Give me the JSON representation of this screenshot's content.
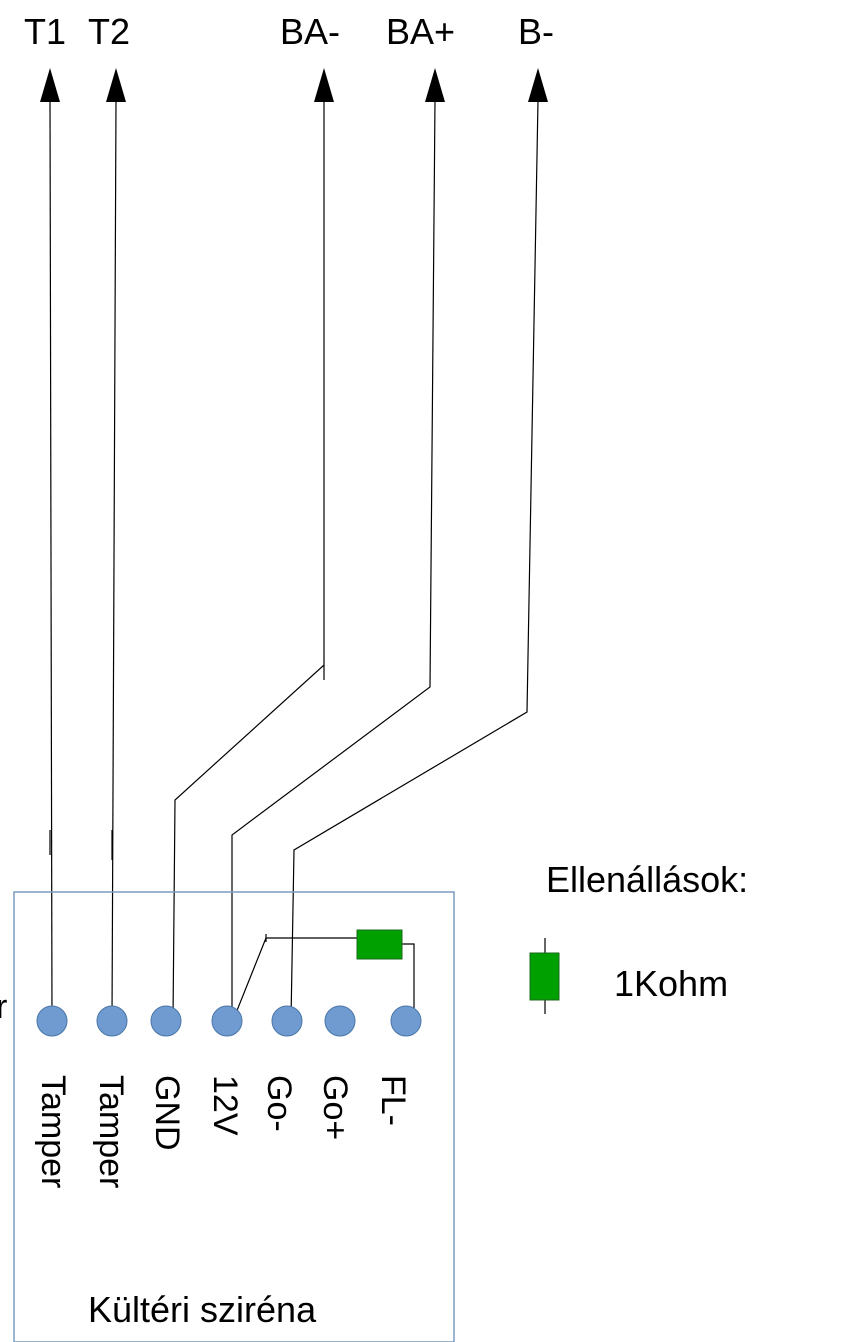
{
  "terminals": {
    "top": [
      "T1",
      "T2",
      "BA-",
      "BA+",
      "B-"
    ],
    "pins": [
      "Tamper",
      "Tamper",
      "GND",
      "12V",
      "Go-",
      "Go+",
      "FL-"
    ]
  },
  "device": {
    "name": "Kültéri sziréna",
    "stray_char": "r"
  },
  "legend": {
    "title": "Ellenállások:",
    "resistor_label": "1Kohm"
  },
  "colors": {
    "pin": "#6f9bd1",
    "pin_stroke": "#4a76a8",
    "resistor": "#00a000",
    "box": "#7a9cbf"
  }
}
